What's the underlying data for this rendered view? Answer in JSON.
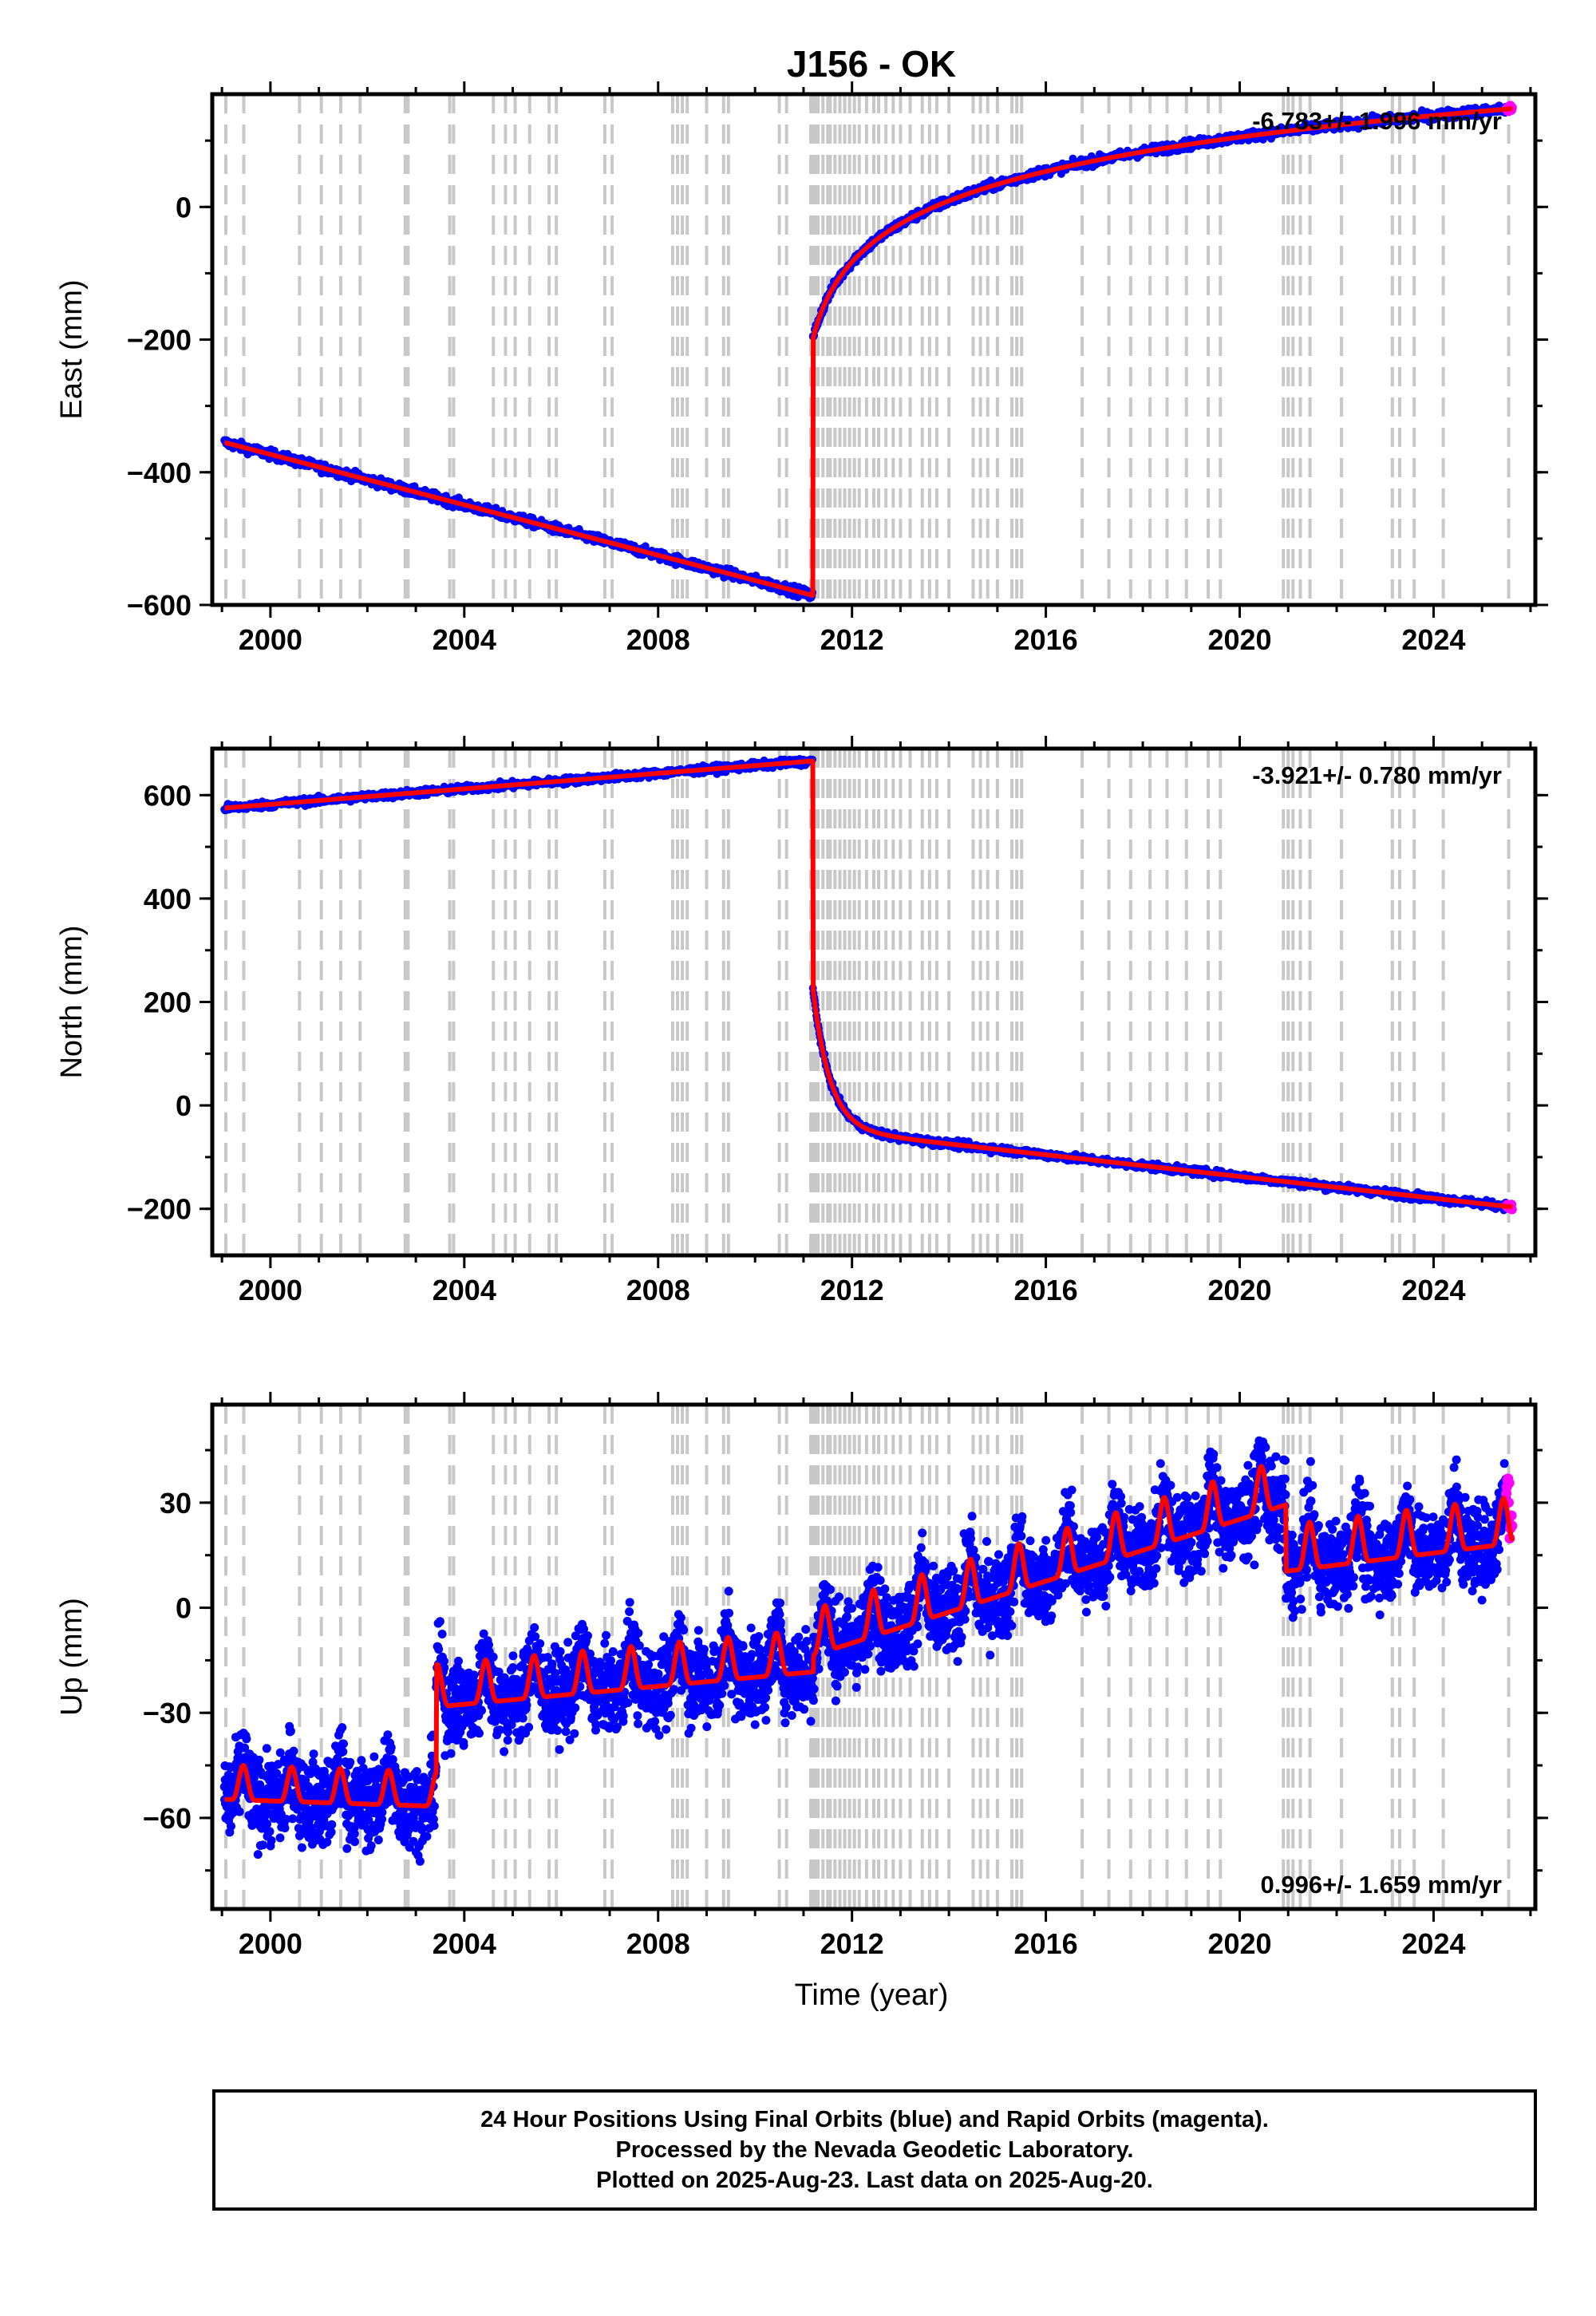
{
  "chart_data": {
    "title": "J156 - OK",
    "type": "scatter",
    "xlabel": "Time (year)",
    "xlim": [
      1998.8,
      2026.1
    ],
    "x_ticks": [
      2000,
      2004,
      2008,
      2012,
      2016,
      2020,
      2024
    ],
    "offset_epochs": [
      1999.08,
      1999.45,
      2000.6,
      2001.05,
      2001.45,
      2001.85,
      2002.78,
      2002.84,
      2003.7,
      2003.78,
      2004.6,
      2004.85,
      2005.05,
      2005.35,
      2005.75,
      2005.9,
      2006.9,
      2007.05,
      2008.3,
      2008.4,
      2008.5,
      2008.6,
      2009.0,
      2009.35,
      2009.45,
      2010.5,
      2010.65,
      2011.15,
      2011.2,
      2011.25,
      2011.3,
      2011.4,
      2011.5,
      2011.55,
      2011.65,
      2011.75,
      2011.85,
      2011.95,
      2012.05,
      2012.15,
      2012.3,
      2012.45,
      2012.55,
      2012.7,
      2012.85,
      2013.0,
      2013.2,
      2013.45,
      2013.6,
      2013.75,
      2014.0,
      2014.5,
      2014.65,
      2014.8,
      2015.0,
      2015.3,
      2015.4,
      2015.5,
      2016.75,
      2017.3,
      2017.75,
      2018.15,
      2018.5,
      2018.9,
      2019.35,
      2019.6,
      2020.9,
      2021.0,
      2021.1,
      2021.25,
      2021.45,
      2022.1,
      2023.15,
      2023.3,
      2023.6,
      2024.2,
      2025.55
    ],
    "panels": [
      {
        "component": "East",
        "ylabel": "East (mm)",
        "ylim": [
          -600,
          170
        ],
        "y_ticks": [
          0,
          -200,
          -400,
          -600
        ],
        "rate_label": "-6.783+/- 1.996 mm/yr",
        "rate_position": "top-right",
        "earthquake_epoch": 2011.19,
        "model": {
          "pre_start": -355,
          "pre_rate": -19.0,
          "post_start": -200,
          "post_final": 148,
          "post_scale": 0.9
        },
        "noise": 3.5,
        "series": [
          {
            "name": "Final Orbits",
            "color": "#0000ff",
            "x_range": [
              1999.05,
              2025.5
            ]
          },
          {
            "name": "Rapid Orbits",
            "color": "#ff00ff",
            "x_range": [
              2025.5,
              2025.63
            ]
          },
          {
            "name": "Model",
            "color": "#ff0000"
          }
        ]
      },
      {
        "component": "North",
        "ylabel": "North (mm)",
        "ylim": [
          -290,
          690
        ],
        "y_ticks": [
          600,
          400,
          200,
          0,
          -200
        ],
        "rate_label": "-3.921+/- 0.780 mm/yr",
        "rate_position": "top-right",
        "earthquake_epoch": 2011.19,
        "model": {
          "pre_start": 575,
          "pre_rate": 7.5,
          "post_start": 230,
          "post_final": -270,
          "post_scale": 0.35,
          "post_linear": -10.5
        },
        "noise": 3.5,
        "series": [
          {
            "name": "Final Orbits",
            "color": "#0000ff",
            "x_range": [
              1999.05,
              2025.5
            ]
          },
          {
            "name": "Rapid Orbits",
            "color": "#ff00ff",
            "x_range": [
              2025.5,
              2025.63
            ]
          },
          {
            "name": "Model",
            "color": "#ff0000"
          }
        ]
      },
      {
        "component": "Up",
        "ylabel": "Up (mm)",
        "ylim": [
          -86,
          58
        ],
        "y_ticks": [
          30,
          0,
          -30,
          -60
        ],
        "rate_label": "0.996+/- 1.659 mm/yr",
        "rate_position": "bottom-right",
        "segments": [
          {
            "x_start": 1999.05,
            "x_end": 2003.42,
            "level_start": -52,
            "level_end": -54,
            "amplitude": 4.5
          },
          {
            "x_start": 2003.42,
            "x_end": 2011.2,
            "level_start": -25,
            "level_end": -15,
            "amplitude": 5.5
          },
          {
            "x_start": 2011.2,
            "x_end": 2020.95,
            "level_start": -10,
            "level_end": 33,
            "amplitude": 6
          },
          {
            "x_start": 2020.95,
            "x_end": 2025.63,
            "level_start": 14,
            "level_end": 22,
            "amplitude": 6
          }
        ],
        "noise": 6,
        "series": [
          {
            "name": "Final Orbits",
            "color": "#0000ff",
            "x_range": [
              1999.05,
              2025.5
            ]
          },
          {
            "name": "Rapid Orbits",
            "color": "#ff00ff",
            "x_range": [
              2025.5,
              2025.63
            ]
          },
          {
            "name": "Model",
            "color": "#ff0000"
          }
        ]
      }
    ]
  },
  "footer": {
    "line1": "24 Hour Positions Using Final Orbits (blue) and Rapid Orbits (magenta).",
    "line2": "Processed by the Nevada Geodetic Laboratory.",
    "line3": "Plotted on 2025-Aug-23. Last data on 2025-Aug-20."
  }
}
